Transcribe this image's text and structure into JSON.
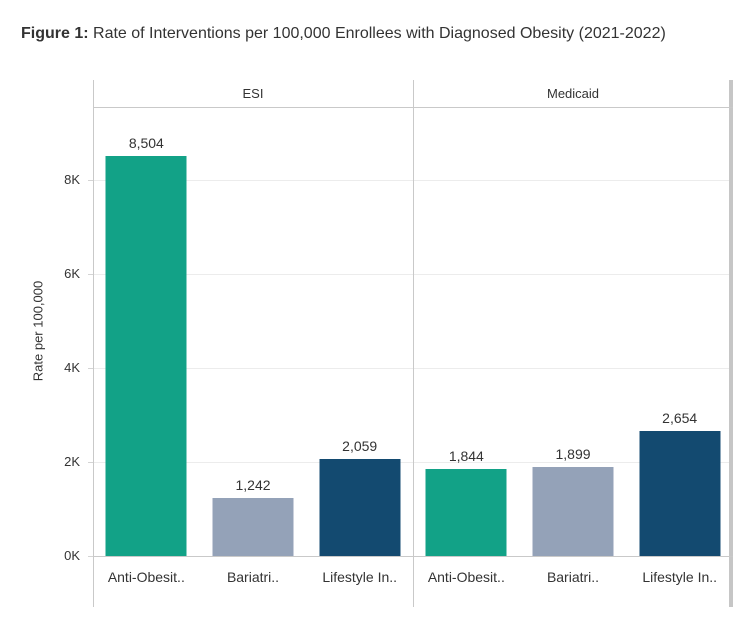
{
  "title": {
    "prefix": "Figure 1:",
    "rest": " Rate of Interventions per 100,000 Enrollees with Diagnosed Obesity (2021-2022)"
  },
  "chart_data": {
    "type": "bar",
    "title": "Figure 1: Rate of Interventions per 100,000 Enrollees with Diagnosed Obesity (2021-2022)",
    "ylabel": "Rate per 100,000",
    "ylim": [
      0,
      9550
    ],
    "grid": true,
    "legend": "none",
    "yticks": {
      "values": [
        0,
        2000,
        4000,
        6000,
        8000
      ],
      "labels": [
        "0K",
        "2K",
        "4K",
        "6K",
        "8K"
      ]
    },
    "categories": [
      "Anti-Obesit..",
      "Bariatri..",
      "Lifestyle In.."
    ],
    "panels": [
      {
        "label": "ESI",
        "values": [
          8504,
          1242,
          2059
        ],
        "value_labels": [
          "8,504",
          "1,242",
          "2,059"
        ]
      },
      {
        "label": "Medicaid",
        "values": [
          1844,
          1899,
          2654
        ],
        "value_labels": [
          "1,844",
          "1,899",
          "2,654"
        ]
      }
    ],
    "bar_colors": [
      "#12a287",
      "#94a2b8",
      "#134a70"
    ]
  },
  "colors": {
    "bar_teal_green": "#12a287",
    "bar_gray_blue": "#94a2b8",
    "bar_navy": "#134a70",
    "border": "#c9c9c9",
    "gridline": "#ececec",
    "text": "#333333"
  }
}
